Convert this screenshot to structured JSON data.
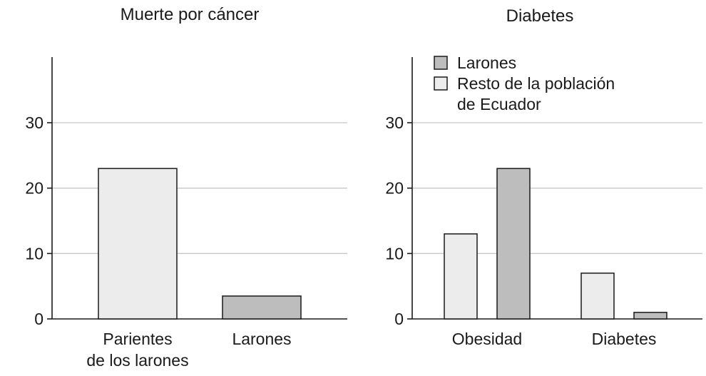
{
  "chart_data": [
    {
      "type": "bar",
      "title": "Muerte por cáncer",
      "categories": [
        "Parientes\nde los larones",
        "Larones"
      ],
      "values": [
        23,
        3.5
      ],
      "bar_colors": [
        "#ececec",
        "#bdbdbd"
      ],
      "yticks": [
        0,
        10,
        20,
        30
      ],
      "ylim": [
        0,
        38
      ],
      "grid": true
    },
    {
      "type": "bar",
      "title": "Diabetes",
      "categories": [
        "Obesidad",
        "Diabetes"
      ],
      "series": [
        {
          "name": "Resto de la población\nde Ecuador",
          "values": [
            13,
            7
          ],
          "color": "#ececec"
        },
        {
          "name": "Larones",
          "values": [
            23,
            1
          ],
          "color": "#bdbdbd"
        }
      ],
      "legend_order": [
        1,
        0
      ],
      "yticks": [
        0,
        10,
        20,
        30
      ],
      "ylim": [
        0,
        38
      ],
      "grid": true,
      "legend": "top-left"
    }
  ]
}
